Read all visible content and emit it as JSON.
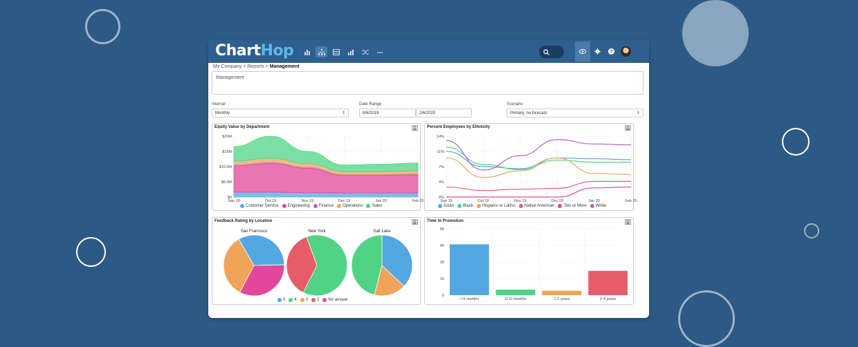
{
  "colors": {
    "background": "#2d5a85",
    "topbar": "#2e5f8f",
    "blue": "#54a8e2",
    "green": "#4fd486",
    "orange": "#f0a45a",
    "red": "#e85c6a",
    "pink": "#e3479a",
    "purple": "#b561c8"
  },
  "app": {
    "logo_chart": "Chart",
    "logo_hop": "Hop"
  },
  "nav": {
    "icons": [
      "bar-chart-icon",
      "org-chart-icon",
      "table-icon",
      "analytics-icon",
      "shuffle-icon",
      "more-icon"
    ]
  },
  "toolbar": {
    "icons": [
      "search-icon",
      "eye-icon",
      "gear-icon",
      "help-icon",
      "avatar"
    ]
  },
  "breadcrumb": {
    "item1": "My Company",
    "sep1": ">",
    "item2": "Reports",
    "sep2": ">",
    "current": "Management"
  },
  "report": {
    "title": "Management"
  },
  "filters": {
    "interval_label": "Interval",
    "interval_value": "Monthly",
    "date_label": "Date Range",
    "date_start": "8/6/2019",
    "date_end": "2/6/2020",
    "scenario_label": "Scenario",
    "scenario_value": "Primary, no forecast"
  },
  "chart_data": [
    {
      "type": "area",
      "title": "Equity Value by Department",
      "x": [
        "Sep 19",
        "Oct 19",
        "Nov 19",
        "Dec 19",
        "Jan 20",
        "Feb 20"
      ],
      "yticks": [
        "$20M",
        "$15M",
        "$10.0M",
        "$5.0M",
        "$0"
      ],
      "ylim": [
        0,
        20
      ],
      "stacked": true,
      "series": [
        {
          "name": "Customer Service",
          "color": "#54a8e2",
          "values": [
            1.6,
            1.6,
            1.4,
            1.3,
            1.3,
            1.3
          ]
        },
        {
          "name": "Engineering",
          "color": "#e3479a",
          "values": [
            8.6,
            9.4,
            8.0,
            5.8,
            5.8,
            6.0
          ]
        },
        {
          "name": "Finance",
          "color": "#b561c8",
          "values": [
            0.4,
            0.4,
            0.4,
            0.3,
            0.3,
            0.3
          ]
        },
        {
          "name": "Operations",
          "color": "#f0a45a",
          "values": [
            1.2,
            1.3,
            1.2,
            1.0,
            1.0,
            1.0
          ]
        },
        {
          "name": "Sales",
          "color": "#4fd486",
          "values": [
            4.8,
            7.3,
            4.0,
            2.1,
            2.4,
            2.6
          ]
        }
      ]
    },
    {
      "type": "line",
      "title": "Percent Employees by Ethnicity",
      "x": [
        "Sep 19",
        "Oct 19",
        "Nov 19",
        "Dec 19",
        "Jan 20",
        "Feb 20"
      ],
      "yticks": [
        "14%",
        "11%",
        "7%",
        "4%",
        "0%"
      ],
      "ylim": [
        0,
        14
      ],
      "series": [
        {
          "name": "Asian",
          "color": "#54a8e2",
          "values": [
            10.5,
            7.0,
            6.5,
            9.0,
            8.8,
            8.6
          ]
        },
        {
          "name": "Black",
          "color": "#4fd486",
          "values": [
            11.5,
            7.5,
            6.3,
            8.5,
            8.0,
            8.0
          ]
        },
        {
          "name": "Hispanic or Latino",
          "color": "#f0a45a",
          "values": [
            9.0,
            4.5,
            6.0,
            9.0,
            5.4,
            5.2
          ]
        },
        {
          "name": "Native American",
          "color": "#e85c6a",
          "values": [
            2.3,
            1.5,
            1.8,
            2.0,
            3.6,
            3.6
          ]
        },
        {
          "name": "Two or More",
          "color": "#e3479a",
          "values": [
            0,
            0,
            0,
            0,
            2.1,
            2.3
          ]
        },
        {
          "name": "White",
          "color": "#b561c8",
          "values": [
            13.0,
            6.2,
            9.5,
            13.2,
            12.2,
            12.0
          ]
        }
      ]
    },
    {
      "type": "pie",
      "title": "Feedback Rating by Location",
      "legend": [
        {
          "name": "5",
          "color": "#54a8e2"
        },
        {
          "name": "4",
          "color": "#4fd486"
        },
        {
          "name": "3",
          "color": "#f0a45a"
        },
        {
          "name": "2",
          "color": "#e85c6a"
        },
        {
          "name": "No answer",
          "color": "#e3479a"
        }
      ],
      "pies": [
        {
          "name": "San Francisco",
          "slices": [
            {
              "label": "5",
              "value": 0.33
            },
            {
              "label": "No answer",
              "value": 0.33
            },
            {
              "label": "3",
              "value": 0.34
            }
          ]
        },
        {
          "name": "New York",
          "slices": [
            {
              "label": "4",
              "value": 0.63
            },
            {
              "label": "2",
              "value": 0.37
            }
          ]
        },
        {
          "name": "Salt Lake",
          "slices": [
            {
              "label": "5",
              "value": 0.37
            },
            {
              "label": "3",
              "value": 0.17
            },
            {
              "label": "4",
              "value": 0.46
            }
          ]
        }
      ]
    },
    {
      "type": "bar",
      "title": "Time to Promotion",
      "categories": [
        "< 6 months",
        "6-12 months",
        "1-2 years",
        "2-4 years"
      ],
      "values": [
        46,
        5,
        4,
        22
      ],
      "colors": [
        "#54a8e2",
        "#4fd486",
        "#f0a45a",
        "#e85c6a"
      ],
      "yticks": [
        "60",
        "45",
        "30",
        "15",
        "0"
      ],
      "ylim": [
        0,
        60
      ]
    }
  ]
}
